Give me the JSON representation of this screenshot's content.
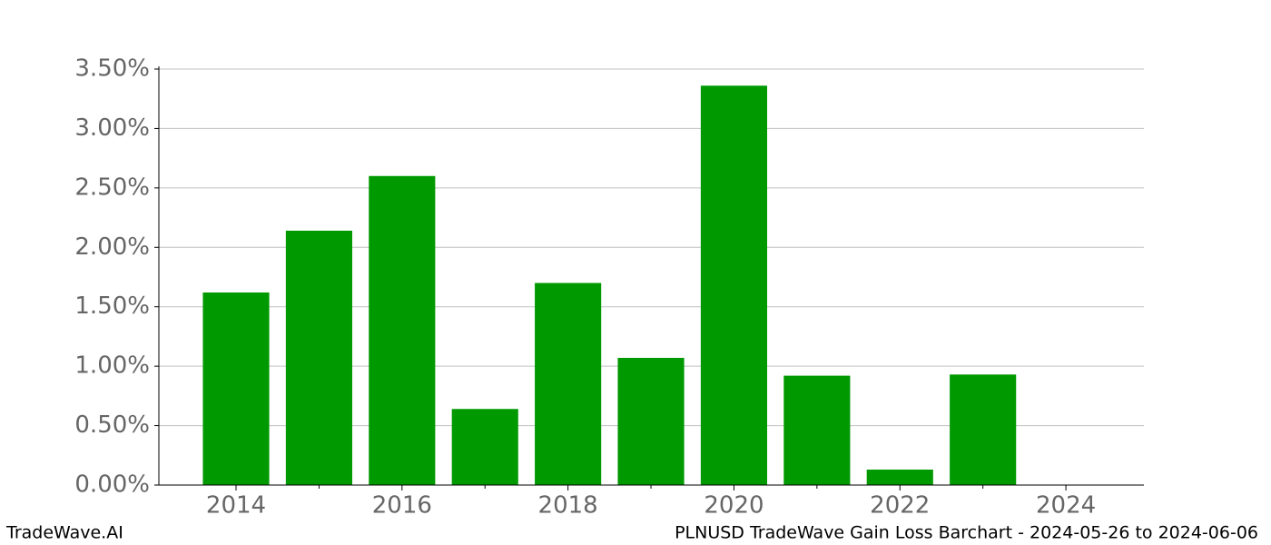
{
  "chart_data": {
    "type": "bar",
    "x": [
      2014,
      2015,
      2016,
      2017,
      2018,
      2019,
      2020,
      2021,
      2022,
      2023
    ],
    "values": [
      1.62,
      2.14,
      2.6,
      0.64,
      1.7,
      1.07,
      3.36,
      0.92,
      0.13,
      0.93
    ],
    "color": "#009900",
    "xlim": [
      2013.07,
      2024.94
    ],
    "xticks": [
      2014,
      2016,
      2018,
      2020,
      2022,
      2024
    ],
    "xminorticks": [
      2015,
      2017,
      2019,
      2021,
      2023
    ],
    "ylim": [
      0,
      3.5
    ],
    "yticks": [
      {
        "value": 0,
        "label": "0.00%"
      },
      {
        "value": 0.5,
        "label": "0.50%"
      },
      {
        "value": 1,
        "label": "1.00%"
      },
      {
        "value": 1.5,
        "label": "1.50%"
      },
      {
        "value": 2,
        "label": "2.00%"
      },
      {
        "value": 2.5,
        "label": "2.50%"
      },
      {
        "value": 3,
        "label": "3.00%"
      },
      {
        "value": 3.5,
        "label": "3.50%"
      }
    ],
    "grid": true,
    "footer_left": "TradeWave.AI",
    "footer_right": "PLNUSD TradeWave Gain Loss Barchart - 2024-05-26 to 2024-06-06"
  }
}
